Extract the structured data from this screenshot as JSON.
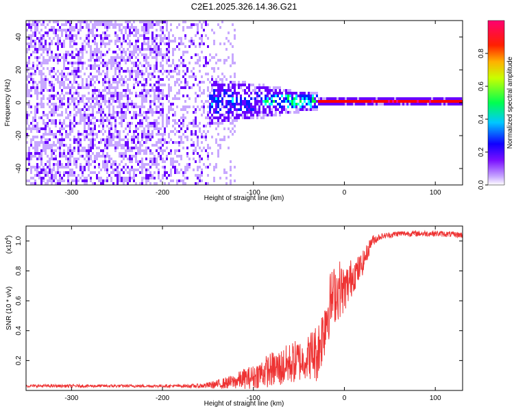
{
  "figure": {
    "title": "C2E1.2025.326.14.36.G21"
  },
  "chart_data": [
    {
      "type": "heatmap",
      "title": "C2E1.2025.326.14.36.G21",
      "xlabel": "Height of straight line (km)",
      "ylabel": "Frequency (Hz)",
      "xlim": [
        -350,
        130
      ],
      "ylim": [
        -50,
        50
      ],
      "xticks": [
        -300,
        -200,
        -100,
        0,
        100
      ],
      "yticks": [
        -40,
        -20,
        0,
        20,
        40
      ],
      "colorbar": {
        "label": "Normalized spectral amplitude",
        "ticks": [
          0.0,
          0.2,
          0.4,
          0.6,
          0.8
        ],
        "range": [
          0,
          1
        ],
        "colormap": [
          "#ffffff",
          "#c8a8ff",
          "#6a00ff",
          "#0020ff",
          "#00ffff",
          "#00ff40",
          "#ffff00",
          "#ff8000",
          "#ff0000",
          "#ff0080"
        ]
      },
      "features": [
        {
          "x_range": [
            -350,
            -150
          ],
          "freq_range": [
            -50,
            50
          ],
          "amplitude": "low, scattered noise"
        },
        {
          "x_range": [
            -150,
            -30
          ],
          "freq_range": [
            -15,
            15
          ],
          "amplitude": "moderate, narrowing toward center"
        },
        {
          "x_range": [
            -30,
            130
          ],
          "freq_range": [
            -1,
            1
          ],
          "amplitude": "high, stable carrier line at 0 Hz"
        }
      ]
    },
    {
      "type": "line",
      "xlabel": "Height of straight line (km)",
      "ylabel": "SNR (10 * v/v)",
      "yscale_note": "(x10",
      "yscale_exp": "4",
      "line_color": "#ee3333",
      "xlim": [
        -350,
        130
      ],
      "ylim": [
        0,
        1.1
      ],
      "xticks": [
        -300,
        -200,
        -100,
        0,
        100
      ],
      "yticks": [
        0.2,
        0.4,
        0.6,
        0.8,
        1.0
      ],
      "x": [
        -350,
        -300,
        -250,
        -200,
        -180,
        -160,
        -150,
        -140,
        -130,
        -120,
        -110,
        -100,
        -90,
        -80,
        -70,
        -60,
        -50,
        -45,
        -40,
        -35,
        -30,
        -25,
        -20,
        -15,
        -10,
        -5,
        0,
        5,
        10,
        15,
        20,
        25,
        30,
        40,
        60,
        80,
        100,
        130
      ],
      "y": [
        0.03,
        0.03,
        0.03,
        0.03,
        0.03,
        0.03,
        0.035,
        0.04,
        0.05,
        0.06,
        0.08,
        0.09,
        0.12,
        0.14,
        0.15,
        0.18,
        0.2,
        0.2,
        0.22,
        0.25,
        0.25,
        0.35,
        0.5,
        0.6,
        0.65,
        0.68,
        0.67,
        0.72,
        0.78,
        0.8,
        0.85,
        0.92,
        1.0,
        1.03,
        1.05,
        1.05,
        1.05,
        1.04
      ],
      "noise": [
        0.01,
        0.01,
        0.01,
        0.01,
        0.01,
        0.015,
        0.02,
        0.03,
        0.04,
        0.05,
        0.07,
        0.08,
        0.1,
        0.12,
        0.13,
        0.14,
        0.15,
        0.12,
        0.15,
        0.18,
        0.2,
        0.2,
        0.25,
        0.2,
        0.2,
        0.2,
        0.15,
        0.15,
        0.12,
        0.1,
        0.08,
        0.06,
        0.04,
        0.02,
        0.02,
        0.02,
        0.02,
        0.02
      ]
    }
  ]
}
